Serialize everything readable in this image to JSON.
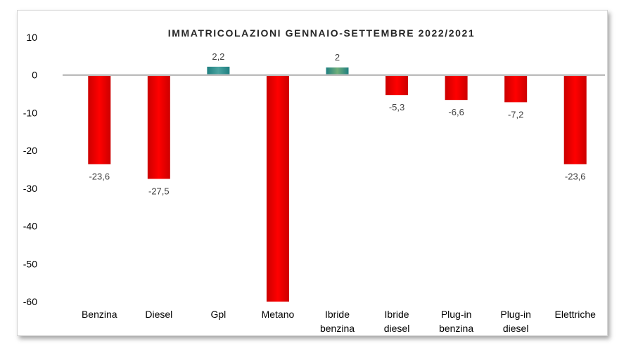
{
  "chart_data": {
    "type": "bar",
    "title": "IMMATRICOLAZIONI GENNAIO-SETTEMBRE 2022/2021",
    "categories": [
      "Benzina",
      "Diesel",
      "Gpl",
      "Metano",
      "Ibride benzina",
      "Ibride diesel",
      "Plug-in benzina",
      "Plug-in diesel",
      "Elettriche"
    ],
    "category_lines": [
      [
        "Benzina"
      ],
      [
        "Diesel"
      ],
      [
        "Gpl"
      ],
      [
        "Metano"
      ],
      [
        "Ibride",
        "benzina"
      ],
      [
        "Ibride",
        "diesel"
      ],
      [
        "Plug-in",
        "benzina"
      ],
      [
        "Plug-in",
        "diesel"
      ],
      [
        "Elettriche"
      ]
    ],
    "values": [
      -23.6,
      -27.5,
      2.2,
      -60,
      2,
      -5.3,
      -6.6,
      -7.2,
      -23.6
    ],
    "data_labels": [
      "-23,6",
      "-27,5",
      "2,2",
      "",
      "2",
      "-5,3",
      "-6,6",
      "-7,2",
      "-23,6"
    ],
    "ylim": [
      -60,
      10
    ],
    "yticks": [
      10,
      0,
      -10,
      -20,
      -30,
      -40,
      -50,
      -60
    ],
    "ytick_labels": [
      "10",
      "0",
      "-10",
      "-20",
      "-30",
      "-40",
      "-50",
      "-60"
    ],
    "xlabel": "",
    "ylabel": "",
    "grid": false,
    "legend": "none",
    "colors": {
      "negative_edge": "#cc0000",
      "negative_center": "#ff0000",
      "positive_edge": "#1f7f80",
      "positive_center": "#4aa3a0",
      "positive_alt_center": "#6fae7a",
      "axis": "#bfbfbf"
    }
  }
}
